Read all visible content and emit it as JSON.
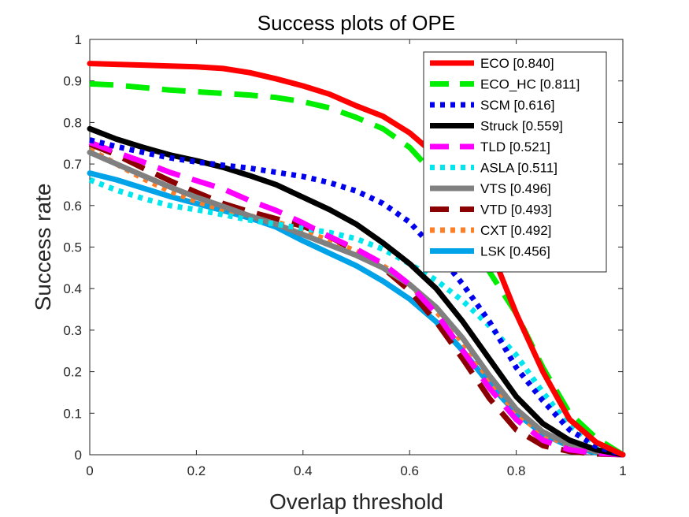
{
  "chart_data": {
    "type": "line",
    "title": "Success plots of OPE",
    "xlabel": "Overlap threshold",
    "ylabel": "Success rate",
    "xlim": [
      0,
      1
    ],
    "ylim": [
      0,
      1
    ],
    "xticks": [
      "0",
      "0.2",
      "0.4",
      "0.6",
      "0.8",
      "1"
    ],
    "yticks": [
      "0",
      "0.1",
      "0.2",
      "0.3",
      "0.4",
      "0.5",
      "0.6",
      "0.7",
      "0.8",
      "0.9",
      "1"
    ],
    "grid": false,
    "legend_position": "top-right",
    "x": [
      0,
      0.05,
      0.1,
      0.15,
      0.2,
      0.25,
      0.3,
      0.35,
      0.4,
      0.45,
      0.5,
      0.55,
      0.6,
      0.65,
      0.7,
      0.75,
      0.8,
      0.85,
      0.9,
      0.95,
      1.0
    ],
    "series": [
      {
        "name": "ECO [0.840]",
        "color": "#ff0000",
        "style": "solid",
        "values": [
          0.942,
          0.94,
          0.938,
          0.936,
          0.934,
          0.93,
          0.92,
          0.905,
          0.888,
          0.868,
          0.84,
          0.815,
          0.775,
          0.72,
          0.64,
          0.5,
          0.34,
          0.2,
          0.085,
          0.03,
          0.0
        ]
      },
      {
        "name": "ECO_HC [0.811]",
        "color": "#00ee00",
        "style": "dashed",
        "values": [
          0.893,
          0.89,
          0.884,
          0.878,
          0.874,
          0.87,
          0.866,
          0.86,
          0.85,
          0.835,
          0.812,
          0.785,
          0.74,
          0.67,
          0.56,
          0.44,
          0.34,
          0.21,
          0.1,
          0.04,
          0.0
        ]
      },
      {
        "name": "SCM [0.616]",
        "color": "#0000ee",
        "style": "dotted",
        "values": [
          0.758,
          0.742,
          0.728,
          0.715,
          0.705,
          0.697,
          0.69,
          0.68,
          0.67,
          0.655,
          0.635,
          0.605,
          0.56,
          0.49,
          0.41,
          0.32,
          0.21,
          0.13,
          0.06,
          0.02,
          0.0
        ]
      },
      {
        "name": "Struck [0.559]",
        "color": "#000000",
        "style": "solid",
        "values": [
          0.785,
          0.76,
          0.74,
          0.722,
          0.708,
          0.692,
          0.672,
          0.65,
          0.62,
          0.59,
          0.555,
          0.51,
          0.46,
          0.4,
          0.32,
          0.23,
          0.14,
          0.075,
          0.035,
          0.012,
          0.0
        ]
      },
      {
        "name": "TLD [0.521]",
        "color": "#ff00ff",
        "style": "dashed",
        "values": [
          0.752,
          0.728,
          0.705,
          0.68,
          0.66,
          0.64,
          0.612,
          0.588,
          0.558,
          0.525,
          0.495,
          0.46,
          0.41,
          0.34,
          0.25,
          0.16,
          0.085,
          0.035,
          0.012,
          0.004,
          0.0
        ]
      },
      {
        "name": "ASLA [0.511]",
        "color": "#00e5ee",
        "style": "dotted",
        "values": [
          0.662,
          0.637,
          0.617,
          0.6,
          0.59,
          0.578,
          0.565,
          0.555,
          0.545,
          0.535,
          0.52,
          0.495,
          0.46,
          0.42,
          0.37,
          0.31,
          0.24,
          0.15,
          0.07,
          0.025,
          0.0
        ]
      },
      {
        "name": "VTS [0.496]",
        "color": "#808080",
        "style": "solid",
        "values": [
          0.728,
          0.7,
          0.672,
          0.645,
          0.62,
          0.598,
          0.575,
          0.555,
          0.53,
          0.505,
          0.48,
          0.45,
          0.41,
          0.355,
          0.28,
          0.19,
          0.11,
          0.055,
          0.025,
          0.008,
          0.0
        ]
      },
      {
        "name": "VTD [0.493]",
        "color": "#8b0000",
        "style": "dashed",
        "values": [
          0.748,
          0.722,
          0.69,
          0.66,
          0.632,
          0.605,
          0.585,
          0.568,
          0.55,
          0.525,
          0.49,
          0.45,
          0.395,
          0.32,
          0.23,
          0.135,
          0.06,
          0.022,
          0.008,
          0.002,
          0.0
        ]
      },
      {
        "name": "CXT [0.492]",
        "color": "#ff7f27",
        "style": "dotted",
        "values": [
          0.735,
          0.7,
          0.665,
          0.635,
          0.61,
          0.59,
          0.575,
          0.56,
          0.54,
          0.515,
          0.49,
          0.455,
          0.41,
          0.345,
          0.27,
          0.18,
          0.1,
          0.05,
          0.022,
          0.008,
          0.0
        ]
      },
      {
        "name": "LSK [0.456]",
        "color": "#00a2e8",
        "style": "solid",
        "values": [
          0.678,
          0.662,
          0.642,
          0.622,
          0.605,
          0.588,
          0.57,
          0.548,
          0.515,
          0.485,
          0.455,
          0.418,
          0.375,
          0.32,
          0.25,
          0.17,
          0.1,
          0.05,
          0.02,
          0.005,
          0.0
        ]
      }
    ]
  }
}
